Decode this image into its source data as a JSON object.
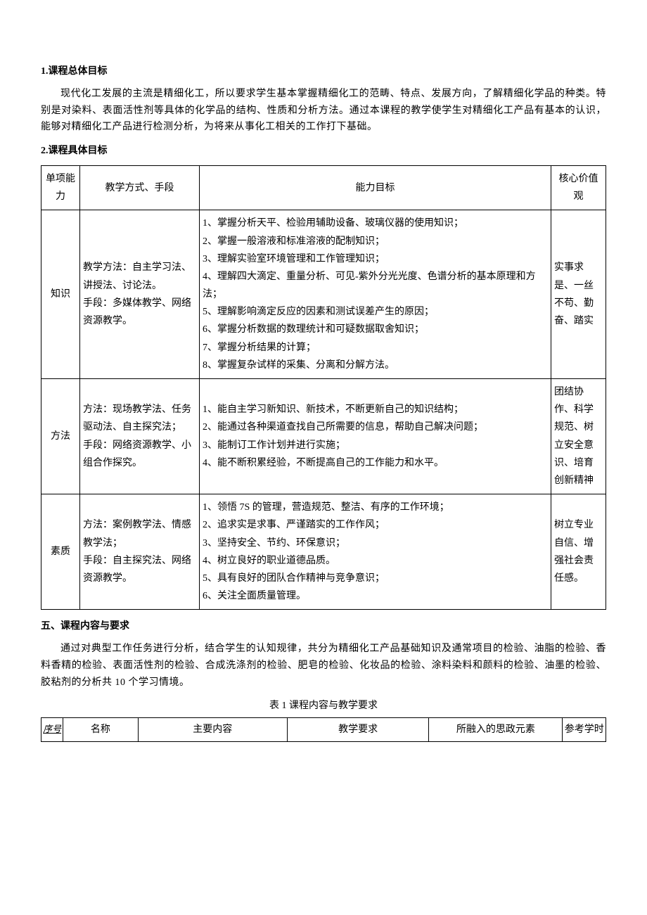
{
  "headings": {
    "h1": "1.课程总体目标",
    "h2": "2.课程具体目标",
    "section5": "五、课程内容与要求"
  },
  "paragraphs": {
    "overall_goal": "现代化工发展的主流是精细化工，所以要求学生基本掌握精细化工的范畴、特点、发展方向，了解精细化学品的种类。特别是对染料、表面活性剂等具体的化学品的结构、性质和分析方法。通过本课程的教学使学生对精细化工产品有基本的认识，能够对精细化工产品进行检测分析，为将来从事化工相关的工作打下基础。",
    "content_require": "通过对典型工作任务进行分析，结合学生的认知规律，共分为精细化工产品基础知识及通常项目的检验、油脂的检验、香料香精的检验、表面活性剂的检验、合成洗涤剂的检验、肥皂的检验、化妆品的检验、涂料染料和颜料的检验、油墨的检验、胶粘剂的分析共 10 个学习情境。"
  },
  "table1": {
    "headers": {
      "col1": "单项能力",
      "col2": "教学方式、手段",
      "col3": "能力目标",
      "col4": "核心价值观"
    },
    "rows": [
      {
        "ability": "知识",
        "method": "教学方法：自主学习法、讲授法、讨论法。\n手段：多媒体教学、网络资源教学。",
        "goal": "1、掌握分析天平、检验用辅助设备、玻璃仪器的使用知识；\n2、掌握一般溶液和标准溶液的配制知识；\n3、理解实验室环境管理和工作管理知识；\n4、理解四大滴定、重量分析、可见-紫外分光光度、色谱分析的基本原理和方法；\n5、理解影响滴定反应的因素和测试误差产生的原因；\n6、掌握分析数据的数理统计和可疑数据取舍知识；\n7、掌握分析结果的计算；\n8、掌握复杂试样的采集、分离和分解方法。",
        "values": "实事求是、一丝不苟、勤奋、踏实"
      },
      {
        "ability": "方法",
        "method": "方法：现场教学法、任务驱动法、自主探究法；\n手段：网络资源教学、小组合作探究。",
        "goal": "1、能自主学习新知识、新技术，不断更新自己的知识结构；\n2、能通过各种渠道查找自己所需要的信息，帮助自己解决问题；\n3、能制订工作计划并进行实施；\n4、能不断积累经验，不断提高自己的工作能力和水平。",
        "values": "团结协作、科学规范、树立安全意识、培育创新精神"
      },
      {
        "ability": "素质",
        "method": "方法：案例教学法、情感教学法；\n手段：自主探究法、网络资源教学。",
        "goal": "1、领悟 7S 的管理，营造规范、整洁、有序的工作环境；\n2、追求实是求事、严谨踏实的工作作风；\n3、坚持安全、节约、环保意识；\n4、树立良好的职业道德品质。\n5、具有良好的团队合作精神与竞争意识；\n6、关注全面质量管理。",
        "values": "树立专业自信、增强社会责任感。"
      }
    ]
  },
  "table2": {
    "caption": "表 1 课程内容与教学要求",
    "headers": {
      "seq": "序号",
      "name": "名称",
      "content": "主要内容",
      "teach_req": "教学要求",
      "ideological": "所融入的思政元素",
      "hours": "参考学时"
    }
  },
  "colors": {
    "text": "#000000",
    "background": "#ffffff",
    "border": "#000000"
  }
}
